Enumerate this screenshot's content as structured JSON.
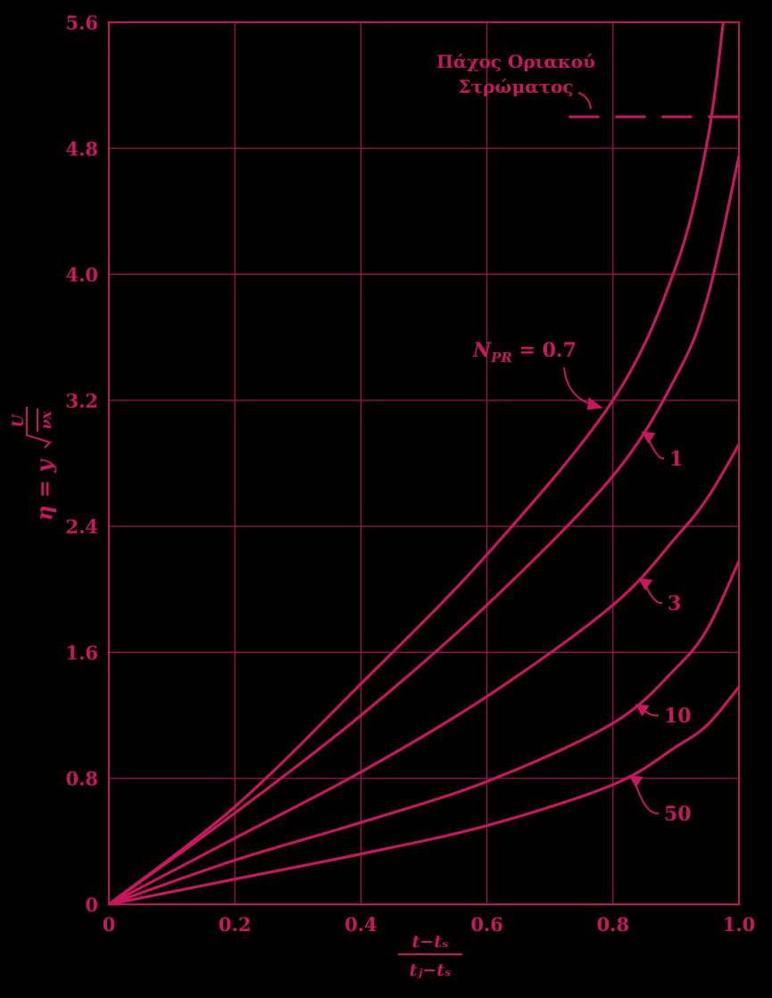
{
  "chart_data": {
    "type": "line",
    "title": "",
    "xlim": [
      0,
      1.0
    ],
    "ylim": [
      0,
      5.6
    ],
    "x_ticks": [
      "0",
      "0.2",
      "0.4",
      "0.6",
      "0.8",
      "1.0"
    ],
    "y_ticks": [
      "0",
      "0.8",
      "1.6",
      "2.4",
      "3.2",
      "4.0",
      "4.8",
      "5.6"
    ],
    "xlabel": {
      "numerator": "t−tₛ",
      "denominator": "tⱼ−tₛ"
    },
    "ylabel": {
      "lhs": "η = y",
      "radical_num": "U",
      "radical_den": "νx"
    },
    "grid": true,
    "series_label_prefix": "N",
    "series_label_sub": "PR",
    "series_label_eq": " = ",
    "series": [
      {
        "name": "0.7",
        "x": [
          0,
          0.2,
          0.4,
          0.6,
          0.8,
          0.9,
          0.95,
          0.975
        ],
        "y": [
          0,
          0.62,
          1.4,
          2.22,
          3.2,
          4.05,
          4.85,
          5.6
        ]
      },
      {
        "name": "1",
        "x": [
          0,
          0.2,
          0.4,
          0.6,
          0.8,
          0.9,
          0.95,
          1.0
        ],
        "y": [
          0,
          0.58,
          1.2,
          1.9,
          2.72,
          3.35,
          3.85,
          4.75
        ]
      },
      {
        "name": "3",
        "x": [
          0,
          0.2,
          0.4,
          0.6,
          0.8,
          0.9,
          0.95,
          1.0
        ],
        "y": [
          0,
          0.42,
          0.84,
          1.32,
          1.9,
          2.33,
          2.58,
          2.92
        ]
      },
      {
        "name": "10",
        "x": [
          0,
          0.2,
          0.4,
          0.6,
          0.8,
          0.9,
          0.95,
          1.0
        ],
        "y": [
          0,
          0.28,
          0.52,
          0.78,
          1.15,
          1.5,
          1.75,
          2.18
        ]
      },
      {
        "name": "50",
        "x": [
          0,
          0.2,
          0.4,
          0.6,
          0.8,
          0.9,
          0.95,
          1.0
        ],
        "y": [
          0,
          0.16,
          0.32,
          0.5,
          0.76,
          1.0,
          1.14,
          1.38
        ]
      }
    ],
    "annotations": {
      "boundary_layer_line1": "Πάχος Οριακού",
      "boundary_layer_line2": "Στρώματος",
      "boundary_layer_y": 5.0,
      "boundary_layer_x_start": 0.73
    }
  }
}
